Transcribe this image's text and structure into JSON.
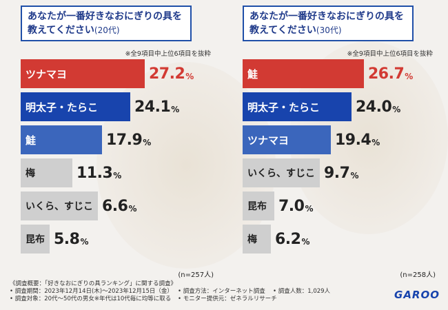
{
  "colors": {
    "accent_red": "#d23a33",
    "accent_blue": "#1844ad",
    "accent_blue_light": "#3b66bc",
    "bar_gray": "#cfcfcf"
  },
  "chart_data": [
    {
      "type": "bar",
      "title_line1": "あなたが一番好きなおにぎりの具を",
      "title_line2": "教えてください",
      "age_group": "(20代)",
      "note": "※全9項目中上位6項目を抜粋",
      "unit": "%",
      "sample": "(n=257人)",
      "categories": [
        "ツナマヨ",
        "明太子・たらこ",
        "鮭",
        "梅",
        "いくら、すじこ",
        "昆布"
      ],
      "values": [
        27.2,
        24.1,
        17.9,
        11.3,
        6.6,
        5.8
      ],
      "labels": [
        "27.2",
        "24.1",
        "17.9",
        "11.3",
        "6.6",
        "5.8"
      ],
      "xlim": [
        0,
        30
      ]
    },
    {
      "type": "bar",
      "title_line1": "あなたが一番好きなおにぎりの具を",
      "title_line2": "教えてください",
      "age_group": "(30代)",
      "note": "※全9項目中上位6項目を抜粋",
      "unit": "%",
      "sample": "(n=258人)",
      "categories": [
        "鮭",
        "明太子・たらこ",
        "ツナマヨ",
        "いくら、すじこ",
        "昆布",
        "梅"
      ],
      "values": [
        26.7,
        24.0,
        19.4,
        9.7,
        7.0,
        6.2
      ],
      "labels": [
        "26.7",
        "24.0",
        "19.4",
        "9.7",
        "7.0",
        "6.2"
      ],
      "xlim": [
        0,
        30
      ]
    }
  ],
  "footer": {
    "heading": "《調査概要：「好きなおにぎりの具ランキング」に関する調査》",
    "period": "• 調査期間：2023年12月14日(木)〜2023年12月15日（金）",
    "method": "• 調査方法：インターネット調査",
    "count": "• 調査人数：1,029人",
    "target": "• 調査対象：20代〜50代の男女※年代は10代毎に均等に取る",
    "provider": "• モニター提供元：ゼネラルリサーチ"
  },
  "logo": "GAROO"
}
